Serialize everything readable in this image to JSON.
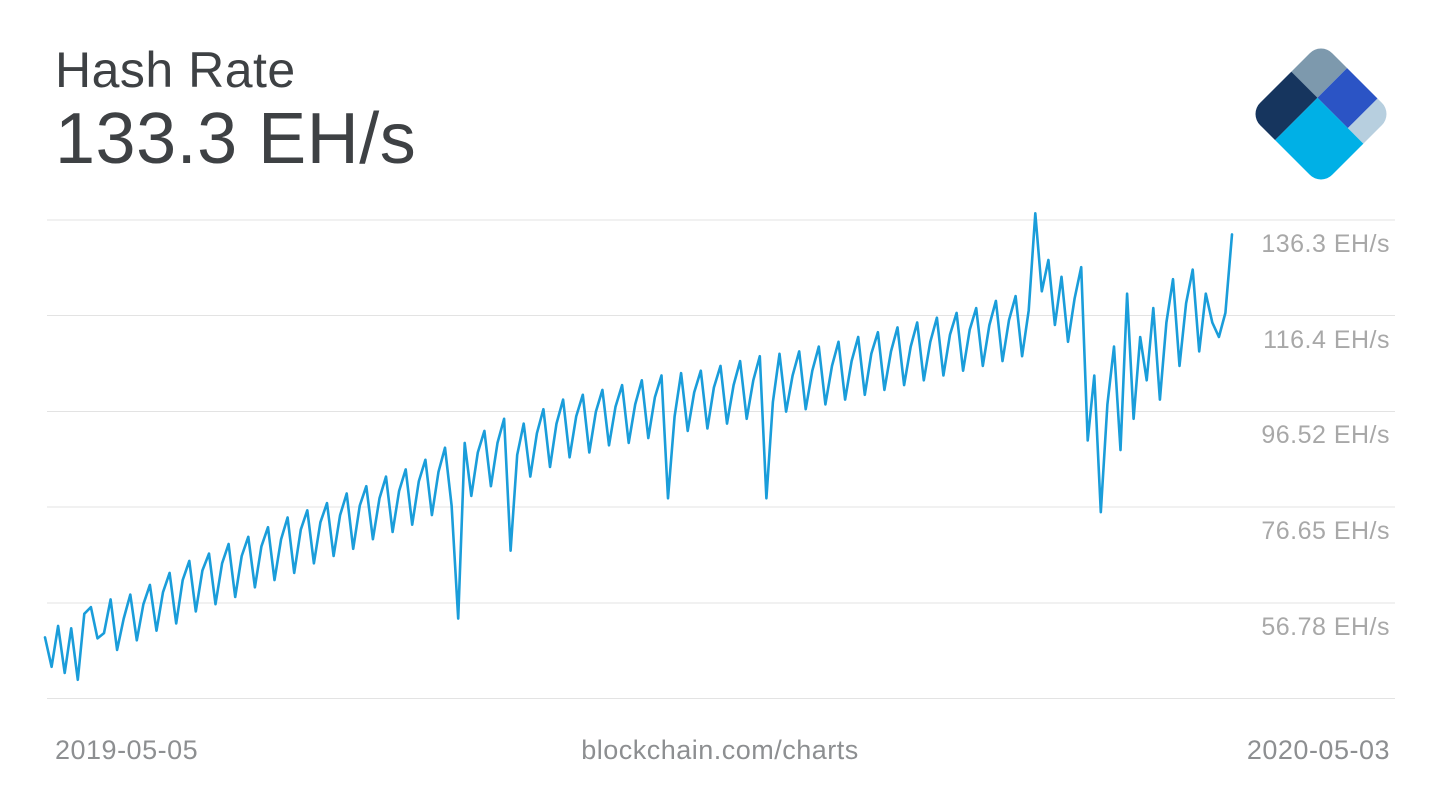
{
  "header": {
    "title": "Hash Rate",
    "value": "133.3 EH/s"
  },
  "footer": {
    "start_date": "2019-05-05",
    "site_label": "blockchain.com/charts",
    "end_date": "2020-05-03"
  },
  "y_axis": {
    "labels": [
      "136.3 EH/s",
      "116.4 EH/s",
      "96.52 EH/s",
      "76.65 EH/s",
      "56.78 EH/s"
    ]
  },
  "logo": {
    "name": "blockchain.com logo",
    "colors": {
      "slate": "#7d99ad",
      "navy": "#16355e",
      "royal": "#2b54c5",
      "pale": "#b7cfdf",
      "cyan": "#00b0e6"
    }
  },
  "chart_data": {
    "type": "line",
    "title": "Hash Rate",
    "unit": "EH/s",
    "x_start": "2019-05-05",
    "x_end": "2020-05-03",
    "latest_value": 133.3,
    "ylim": [
      36.91,
      136.3
    ],
    "gridline_values": [
      136.3,
      116.4,
      96.52,
      76.65,
      56.78,
      36.91
    ],
    "grid_on": true,
    "legend": "none",
    "line_color": "#1a9dda",
    "grid_color": "#e3e3e3",
    "values": [
      49.6,
      43.5,
      52.0,
      42.2,
      51.5,
      40.8,
      54.5,
      55.9,
      49.4,
      50.5,
      57.5,
      47.0,
      53.5,
      58.5,
      49.0,
      56.5,
      60.5,
      51.0,
      59.0,
      63.0,
      52.5,
      61.5,
      65.5,
      55.0,
      63.5,
      67.0,
      56.5,
      65.0,
      69.0,
      58.0,
      66.5,
      70.5,
      60.0,
      68.5,
      72.5,
      61.5,
      70.0,
      74.5,
      63.0,
      72.0,
      76.0,
      65.0,
      73.5,
      77.5,
      66.5,
      75.0,
      79.5,
      68.0,
      77.0,
      81.0,
      70.0,
      78.5,
      83.0,
      71.5,
      80.0,
      84.5,
      73.0,
      82.0,
      86.5,
      75.0,
      84.0,
      89.0,
      77.0,
      53.5,
      90.0,
      79.0,
      88.0,
      92.5,
      81.0,
      90.0,
      95.0,
      67.6,
      87.5,
      94.0,
      83.0,
      92.0,
      97.0,
      85.0,
      94.0,
      99.0,
      87.0,
      95.5,
      100.0,
      88.0,
      96.5,
      101.0,
      89.5,
      97.5,
      102.0,
      90.0,
      98.0,
      103.0,
      91.0,
      99.5,
      104.0,
      78.5,
      95.5,
      104.5,
      92.5,
      100.5,
      105.0,
      93.0,
      101.5,
      106.0,
      94.0,
      102.0,
      107.0,
      95.0,
      103.0,
      108.0,
      78.5,
      98.5,
      108.5,
      96.5,
      104.0,
      109.0,
      97.0,
      105.0,
      110.0,
      98.0,
      106.0,
      111.0,
      99.0,
      107.0,
      112.0,
      100.0,
      108.5,
      113.0,
      101.0,
      109.0,
      114.0,
      102.0,
      110.0,
      115.0,
      103.0,
      111.0,
      116.0,
      104.0,
      112.5,
      117.0,
      105.0,
      113.5,
      118.0,
      106.0,
      114.5,
      119.5,
      107.0,
      115.5,
      120.5,
      108.0,
      117.5,
      137.7,
      121.5,
      128.0,
      114.5,
      124.5,
      111.0,
      120.0,
      126.5,
      90.5,
      104.0,
      75.6,
      98.0,
      110.0,
      88.5,
      121.0,
      95.0,
      112.0,
      103.0,
      118.0,
      99.0,
      115.0,
      124.0,
      106.0,
      119.0,
      126.0,
      109.0,
      121.0,
      115.0,
      112.0,
      117.0,
      133.3
    ]
  }
}
